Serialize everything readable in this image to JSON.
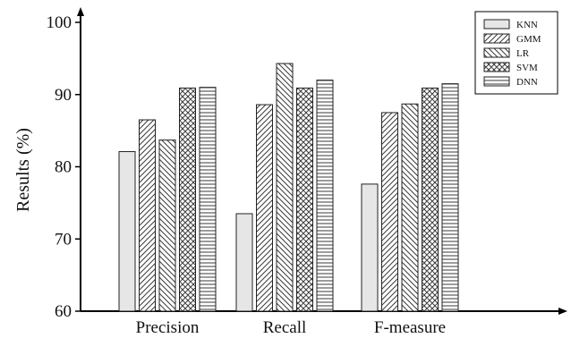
{
  "chart_data": {
    "type": "bar",
    "categories": [
      "Precision",
      "Recall",
      "F-measure"
    ],
    "series": [
      {
        "name": "KNN",
        "values": [
          82.1,
          73.5,
          77.6
        ],
        "pattern": "solid"
      },
      {
        "name": "GMM",
        "values": [
          86.5,
          88.6,
          87.5
        ],
        "pattern": "diag-right"
      },
      {
        "name": "LR",
        "values": [
          83.7,
          94.3,
          88.7
        ],
        "pattern": "diag-left"
      },
      {
        "name": "SVM",
        "values": [
          90.9,
          90.9,
          90.9
        ],
        "pattern": "cross"
      },
      {
        "name": "DNN",
        "values": [
          91.0,
          92.0,
          91.5
        ],
        "pattern": "horizontal"
      }
    ],
    "ylabel": "Results (%)",
    "xlabel": "",
    "title": "",
    "ylim": [
      60,
      100
    ],
    "yticks": [
      "60",
      "70",
      "80",
      "90",
      "100"
    ],
    "legend_position": "top-right",
    "grid": false,
    "colors": {
      "bar_fill": "#e6e6e6",
      "hatch": "#3a3a3a",
      "axis": "#000000"
    }
  }
}
